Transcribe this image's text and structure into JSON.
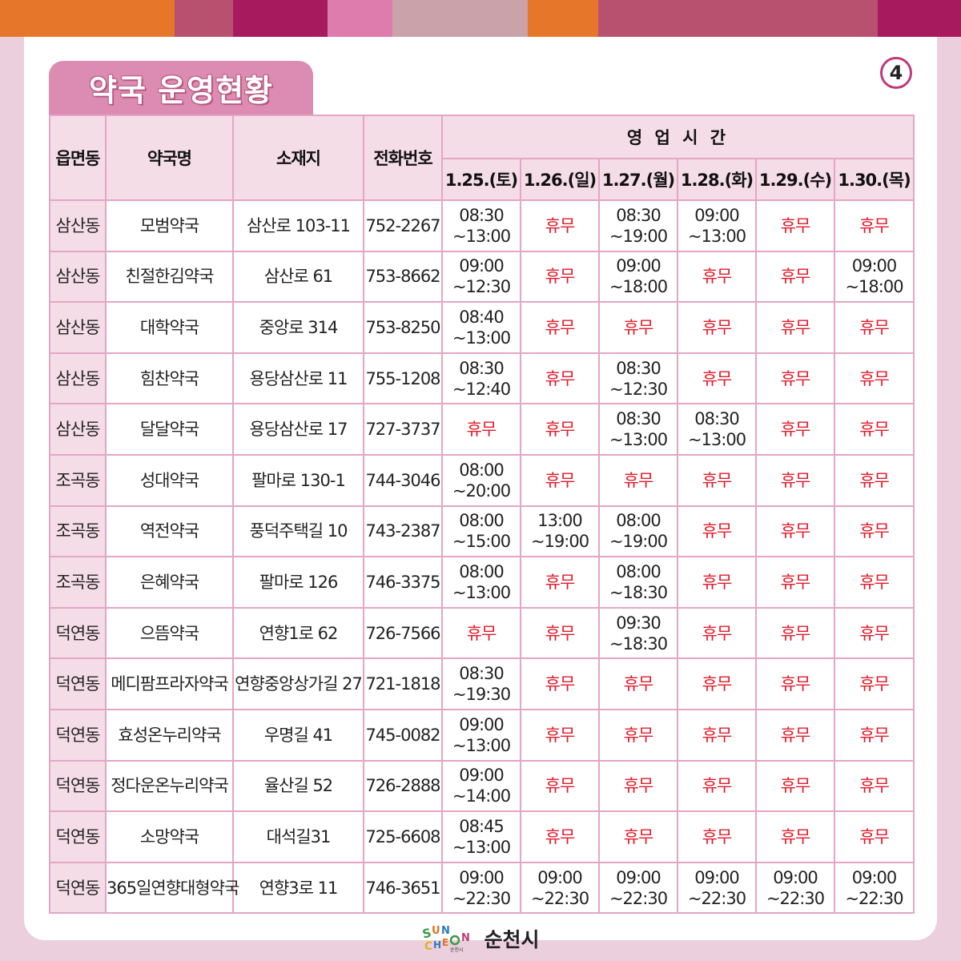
{
  "colors": {
    "top_bar": [
      "#e6772a",
      "#b8516f",
      "#a71a5d",
      "#df7cae",
      "#c9a3a9",
      "#e6772a",
      "#b8516f",
      "#a71a5d"
    ],
    "closed_text": "#e11b2a",
    "accent": "#c03a7b"
  },
  "title": "약국 운영현황",
  "page_number": "4",
  "table": {
    "headers": {
      "district": "읍면동",
      "name": "약국명",
      "address": "소재지",
      "phone": "전화번호",
      "hours_group": "영 업 시 간",
      "days": [
        "1.25.(토)",
        "1.26.(일)",
        "1.27.(월)",
        "1.28.(화)",
        "1.29.(수)",
        "1.30.(목)"
      ]
    },
    "rows": [
      {
        "district": "삼산동",
        "name": "모범약국",
        "address": "삼산로 103-11",
        "phone": "752-2267",
        "hours": [
          [
            "08:30",
            "~13:00"
          ],
          "휴무",
          [
            "08:30",
            "~19:00"
          ],
          [
            "09:00",
            "~13:00"
          ],
          "휴무",
          "휴무"
        ]
      },
      {
        "district": "삼산동",
        "name": "친절한김약국",
        "address": "삼산로 61",
        "phone": "753-8662",
        "hours": [
          [
            "09:00",
            "~12:30"
          ],
          "휴무",
          [
            "09:00",
            "~18:00"
          ],
          "휴무",
          "휴무",
          [
            "09:00",
            "~18:00"
          ]
        ]
      },
      {
        "district": "삼산동",
        "name": "대학약국",
        "address": "중앙로 314",
        "phone": "753-8250",
        "hours": [
          [
            "08:40",
            "~13:00"
          ],
          "휴무",
          "휴무",
          "휴무",
          "휴무",
          "휴무"
        ]
      },
      {
        "district": "삼산동",
        "name": "힘찬약국",
        "address": "용당삼산로 11",
        "phone": "755-1208",
        "hours": [
          [
            "08:30",
            "~12:40"
          ],
          "휴무",
          [
            "08:30",
            "~12:30"
          ],
          "휴무",
          "휴무",
          "휴무"
        ]
      },
      {
        "district": "삼산동",
        "name": "달달약국",
        "address": "용당삼산로 17",
        "phone": "727-3737",
        "hours": [
          "휴무",
          "휴무",
          [
            "08:30",
            "~13:00"
          ],
          [
            "08:30",
            "~13:00"
          ],
          "휴무",
          "휴무"
        ]
      },
      {
        "district": "조곡동",
        "name": "성대약국",
        "address": "팔마로 130-1",
        "phone": "744-3046",
        "hours": [
          [
            "08:00",
            "~20:00"
          ],
          "휴무",
          "휴무",
          "휴무",
          "휴무",
          "휴무"
        ]
      },
      {
        "district": "조곡동",
        "name": "역전약국",
        "address": "풍덕주택길 10",
        "phone": "743-2387",
        "hours": [
          [
            "08:00",
            "~15:00"
          ],
          [
            "13:00",
            "~19:00"
          ],
          [
            "08:00",
            "~19:00"
          ],
          "휴무",
          "휴무",
          "휴무"
        ]
      },
      {
        "district": "조곡동",
        "name": "은혜약국",
        "address": "팔마로 126",
        "phone": "746-3375",
        "hours": [
          [
            "08:00",
            "~13:00"
          ],
          "휴무",
          [
            "08:00",
            "~18:30"
          ],
          "휴무",
          "휴무",
          "휴무"
        ]
      },
      {
        "district": "덕연동",
        "name": "으뜸약국",
        "address": "연향1로 62",
        "phone": "726-7566",
        "hours": [
          "휴무",
          "휴무",
          [
            "09:30",
            "~18:30"
          ],
          "휴무",
          "휴무",
          "휴무"
        ]
      },
      {
        "district": "덕연동",
        "name": "메디팜프라자약국",
        "address": "연향중앙상가길 27",
        "phone": "721-1818",
        "hours": [
          [
            "08:30",
            "~19:30"
          ],
          "휴무",
          "휴무",
          "휴무",
          "휴무",
          "휴무"
        ]
      },
      {
        "district": "덕연동",
        "name": "효성온누리약국",
        "address": "우명길 41",
        "phone": "745-0082",
        "hours": [
          [
            "09:00",
            "~13:00"
          ],
          "휴무",
          "휴무",
          "휴무",
          "휴무",
          "휴무"
        ]
      },
      {
        "district": "덕연동",
        "name": "정다운온누리약국",
        "address": "율산길 52",
        "phone": "726-2888",
        "hours": [
          [
            "09:00",
            "~14:00"
          ],
          "휴무",
          "휴무",
          "휴무",
          "휴무",
          "휴무"
        ]
      },
      {
        "district": "덕연동",
        "name": "소망약국",
        "address": "대석길31",
        "phone": "725-6608",
        "hours": [
          [
            "08:45",
            "~13:00"
          ],
          "휴무",
          "휴무",
          "휴무",
          "휴무",
          "휴무"
        ]
      },
      {
        "district": "덕연동",
        "name": "365일연향대형약국",
        "address": "연향3로 11",
        "phone": "746-3651",
        "hours": [
          [
            "09:00",
            "~22:30"
          ],
          [
            "09:00",
            "~22:30"
          ],
          [
            "09:00",
            "~22:30"
          ],
          [
            "09:00",
            "~22:30"
          ],
          [
            "09:00",
            "~22:30"
          ],
          [
            "09:00",
            "~22:30"
          ]
        ]
      }
    ]
  },
  "footer": {
    "logo_text": "SUNCHEON",
    "logo_subtext": "순천시",
    "city_name": "순천시"
  }
}
